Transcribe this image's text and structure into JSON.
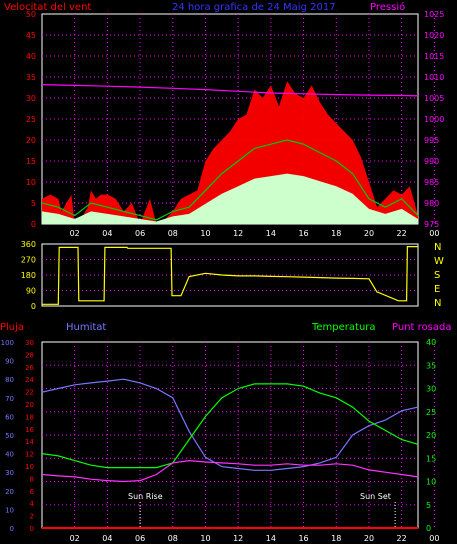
{
  "colors": {
    "background": "#000000",
    "wind": "#ff0000",
    "gust": "#ff0000",
    "wind_avg": "#00cc00",
    "wind_base": "#ccffcc",
    "pressure": "#ff00ff",
    "direction": "#ffff00",
    "humidity": "#7777ff",
    "temperature": "#00ff00",
    "dewpoint": "#ff33ff",
    "rain": "#ff0000",
    "grid": "#ff00ff",
    "axis": "#ffffff"
  },
  "panel1": {
    "title_left": "Velocitat del vent",
    "title_center": "24 hora grafica de  24 Maig 2017",
    "title_right": "Pressió"
  },
  "panel3": {
    "label_rain": "Pluja",
    "label_humidity": "Humitat",
    "label_temperature": "Temperatura",
    "label_dewpoint": "Punt rosada",
    "sunrise_label": "Sun Rise",
    "sunset_label": "Sun Set"
  },
  "chart_data": [
    {
      "type": "line",
      "title": "24 hora grafica de  24 Maig 2017",
      "xlabel": "",
      "x_ticks": [
        "02",
        "04",
        "06",
        "08",
        "10",
        "12",
        "14",
        "16",
        "18",
        "20",
        "22",
        "00"
      ],
      "x_range_hours": [
        1,
        24
      ],
      "y_left": {
        "label": "Velocitat del vent",
        "range": [
          0,
          50
        ],
        "ticks": [
          0,
          5,
          10,
          15,
          20,
          25,
          30,
          35,
          40,
          45,
          50
        ]
      },
      "y_right": {
        "label": "Pressió",
        "range": [
          975,
          1025
        ],
        "ticks": [
          975,
          980,
          985,
          990,
          995,
          1000,
          1005,
          1010,
          1015,
          1020,
          1025
        ]
      },
      "series": [
        {
          "name": "gust",
          "x": [
            1,
            1.5,
            2,
            2.2,
            2.5,
            2.8,
            3,
            3.5,
            3.8,
            4,
            4.3,
            4.6,
            5,
            5.5,
            6,
            6.5,
            7,
            7.3,
            7.6,
            8,
            8.5,
            9,
            9.5,
            10,
            10.5,
            11,
            11.5,
            12,
            12.5,
            13,
            13.5,
            14,
            14.5,
            15,
            15.5,
            16,
            16.5,
            17,
            17.5,
            18,
            18.5,
            19,
            19.5,
            20,
            20.5,
            21,
            21.5,
            22,
            22.5,
            23,
            23.5,
            24
          ],
          "values": [
            6,
            7,
            6,
            3,
            5,
            7,
            0,
            2,
            4,
            8,
            6,
            7,
            7,
            6,
            3,
            5,
            0,
            3,
            6,
            0,
            1,
            3,
            6,
            7,
            8,
            15,
            18,
            20,
            22,
            25,
            26,
            32,
            30,
            33,
            28,
            34,
            31,
            30,
            33,
            29,
            26,
            24,
            22,
            20,
            16,
            10,
            4,
            6,
            8,
            7,
            9,
            2
          ]
        },
        {
          "name": "wind_avg",
          "x": [
            1,
            2,
            3,
            4,
            5,
            6,
            7,
            8,
            9,
            10,
            11,
            12,
            13,
            14,
            15,
            16,
            17,
            18,
            19,
            20,
            21,
            22,
            23,
            24
          ],
          "values": [
            5,
            4,
            2,
            5,
            4,
            3,
            2,
            1,
            3,
            4,
            8,
            12,
            15,
            18,
            19,
            20,
            19,
            17,
            15,
            12,
            6,
            4,
            6,
            2
          ]
        },
        {
          "name": "Pressió",
          "x": [
            1,
            3,
            5,
            7,
            9,
            11,
            13,
            15,
            17,
            19,
            21,
            23,
            24
          ],
          "values": [
            1008.2,
            1008.0,
            1007.8,
            1007.6,
            1007.3,
            1007.0,
            1006.6,
            1006.2,
            1006.0,
            1005.8,
            1005.7,
            1005.6,
            1005.5
          ]
        }
      ]
    },
    {
      "type": "line",
      "x_range_hours": [
        1,
        24
      ],
      "y_left": {
        "range": [
          0,
          360
        ],
        "ticks": [
          0,
          90,
          180,
          270,
          360
        ]
      },
      "y_right_labels": [
        "N",
        "W",
        "S",
        "E",
        "N"
      ],
      "series": [
        {
          "name": "direction",
          "x": [
            1,
            2,
            2.05,
            3.2,
            3.25,
            4.8,
            4.85,
            6.2,
            6.25,
            8.9,
            8.95,
            9.5,
            10,
            11,
            12,
            13,
            14,
            15,
            16,
            17,
            18,
            19,
            20,
            21,
            21.5,
            21.55,
            22.8,
            22.85,
            23.3,
            23.35,
            24
          ],
          "values": [
            10,
            10,
            340,
            340,
            30,
            30,
            340,
            340,
            335,
            335,
            60,
            60,
            170,
            190,
            180,
            175,
            175,
            172,
            170,
            168,
            165,
            162,
            160,
            158,
            80,
            80,
            30,
            30,
            30,
            345,
            345
          ]
        }
      ]
    },
    {
      "type": "line",
      "x_ticks": [
        "02",
        "04",
        "06",
        "08",
        "10",
        "12",
        "14",
        "16",
        "18",
        "20",
        "22",
        "00"
      ],
      "x_range_hours": [
        1,
        24
      ],
      "y_axes": {
        "humidity": {
          "label": "Humitat",
          "range": [
            0,
            100
          ],
          "ticks": [
            0,
            10,
            20,
            30,
            40,
            50,
            60,
            70,
            80,
            90,
            100
          ]
        },
        "rain": {
          "label": "Pluja",
          "range": [
            0,
            30
          ],
          "ticks": [
            0,
            2,
            4,
            6,
            8,
            10,
            12,
            14,
            16,
            18,
            20,
            22,
            24,
            26,
            28,
            30
          ]
        },
        "temperature": {
          "label": "Temperatura",
          "range": [
            0,
            40
          ],
          "ticks": [
            0,
            5,
            10,
            15,
            20,
            25,
            30,
            35,
            40
          ]
        }
      },
      "series": [
        {
          "name": "Humitat",
          "x": [
            1,
            2,
            3,
            4,
            5,
            6,
            7,
            8,
            9,
            10,
            11,
            12,
            13,
            14,
            15,
            16,
            17,
            18,
            19,
            20,
            21,
            22,
            23,
            24
          ],
          "values": [
            73,
            75,
            77,
            78,
            79,
            80,
            78,
            75,
            70,
            52,
            38,
            33,
            32,
            31,
            31,
            32,
            33,
            35,
            38,
            50,
            55,
            58,
            63,
            65
          ]
        },
        {
          "name": "Temperatura",
          "x": [
            1,
            2,
            3,
            4,
            5,
            6,
            7,
            8,
            9,
            10,
            11,
            12,
            13,
            14,
            15,
            16,
            17,
            18,
            19,
            20,
            21,
            22,
            23,
            24
          ],
          "values": [
            16,
            15.5,
            14.5,
            13.5,
            13,
            13,
            13,
            13,
            14,
            19,
            24,
            28,
            30,
            31,
            31,
            31,
            30.5,
            29,
            28,
            26,
            23,
            21,
            19,
            18
          ]
        },
        {
          "name": "Punt rosada",
          "x": [
            1,
            2,
            3,
            4,
            5,
            6,
            7,
            8,
            9,
            10,
            11,
            12,
            13,
            14,
            15,
            16,
            17,
            18,
            19,
            20,
            21,
            22,
            23,
            24
          ],
          "values": [
            11.5,
            11.2,
            11,
            10.5,
            10.2,
            10,
            10.2,
            11.5,
            14,
            14.5,
            14.2,
            14,
            13.8,
            13.5,
            13.5,
            13.8,
            13.5,
            13.5,
            13.8,
            13.5,
            12.5,
            12,
            11.5,
            11
          ]
        },
        {
          "name": "Pluja",
          "x": [
            1,
            12,
            24
          ],
          "values": [
            0,
            0,
            0
          ]
        }
      ],
      "sun_rise_hour": 7,
      "sun_set_hour": 22.6
    }
  ]
}
